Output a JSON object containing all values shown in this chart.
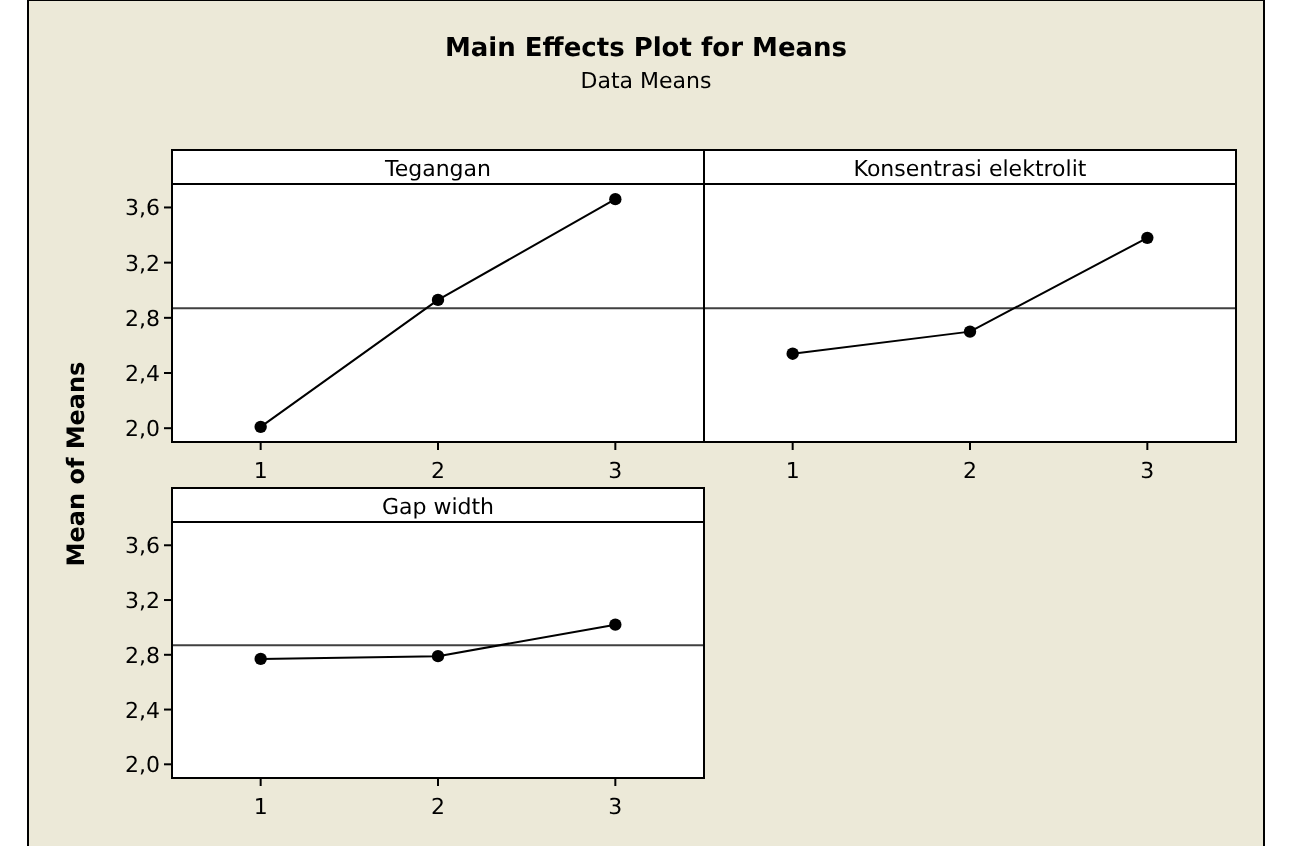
{
  "chart_data": [
    {
      "type": "other",
      "title": "Main Effects Plot for Means",
      "subtitle": "Data Means"
    },
    {
      "type": "line",
      "title": "Tegangan",
      "ylabel": "Mean of Means",
      "categories": [
        "1",
        "2",
        "3"
      ],
      "marker": "circle",
      "line_style": "solid",
      "grid": false,
      "series": [
        {
          "color": "#000000",
          "values": [
            2.01,
            2.93,
            3.66
          ]
        }
      ],
      "ylim": [
        1.9,
        3.77
      ],
      "yticks": [
        {
          "value": 2.0,
          "label": "2,0"
        },
        {
          "value": 2.4,
          "label": "2,4"
        },
        {
          "value": 2.8,
          "label": "2,8"
        },
        {
          "value": 3.2,
          "label": "3,2"
        },
        {
          "value": 3.6,
          "label": "3,6"
        }
      ],
      "ref_lines": [
        {
          "axis": "y",
          "value": 2.87,
          "color": "#404040"
        }
      ]
    },
    {
      "type": "line",
      "title": "Konsentrasi elektrolit",
      "categories": [
        "1",
        "2",
        "3"
      ],
      "marker": "circle",
      "line_style": "solid",
      "grid": false,
      "tick_labels": "x",
      "series": [
        {
          "color": "#000000",
          "values": [
            2.54,
            2.7,
            3.38
          ]
        }
      ],
      "ylim": [
        1.9,
        3.77
      ],
      "ref_lines": [
        {
          "axis": "y",
          "value": 2.87,
          "color": "#404040"
        }
      ]
    },
    {
      "type": "line",
      "title": "Gap width",
      "categories": [
        "1",
        "2",
        "3"
      ],
      "marker": "circle",
      "line_style": "solid",
      "grid": false,
      "series": [
        {
          "color": "#000000",
          "values": [
            2.77,
            2.79,
            3.02
          ]
        }
      ],
      "ylim": [
        1.9,
        3.77
      ],
      "yticks": [
        {
          "value": 2.0,
          "label": "2,0"
        },
        {
          "value": 2.4,
          "label": "2,4"
        },
        {
          "value": 2.8,
          "label": "2,8"
        },
        {
          "value": 3.2,
          "label": "3,2"
        },
        {
          "value": 3.6,
          "label": "3,6"
        }
      ],
      "ref_lines": [
        {
          "axis": "y",
          "value": 2.87,
          "color": "#404040"
        }
      ]
    }
  ]
}
